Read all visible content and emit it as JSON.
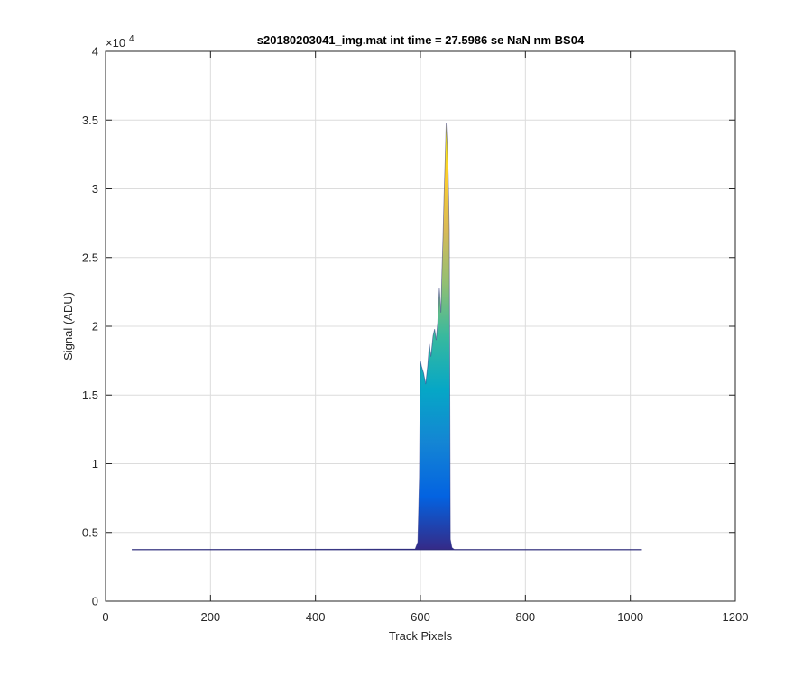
{
  "chart_data": {
    "type": "area",
    "title": "s20180203041_img.mat int time = 27.5986 se  NaN nm BS04",
    "xlabel": "Track Pixels",
    "ylabel": "Signal (ADU)",
    "xlim": [
      0,
      1200
    ],
    "ylim": [
      0,
      40000
    ],
    "y_exponent_label": "×10",
    "y_exponent_power": "4",
    "x_ticks": [
      0,
      200,
      400,
      600,
      800,
      1000,
      1200
    ],
    "x_tick_labels": [
      "0",
      "200",
      "400",
      "600",
      "800",
      "1000",
      "1200"
    ],
    "y_ticks": [
      0,
      5000,
      10000,
      15000,
      20000,
      25000,
      30000,
      35000,
      40000
    ],
    "y_tick_labels": [
      "0",
      "0.5",
      "1",
      "1.5",
      "2",
      "2.5",
      "3",
      "3.5",
      "4"
    ],
    "grid": true,
    "colormap": [
      "#352a87",
      "#0363e1",
      "#1485d4",
      "#06a7c6",
      "#38b99e",
      "#92bf73",
      "#d9ba56",
      "#fcce2e",
      "#f9fb0e"
    ],
    "series": [
      {
        "baseline": 3750,
        "x": [
          50,
          590,
          595,
          598,
          600,
          602,
          606,
          610,
          614,
          617,
          620,
          624,
          627,
          630,
          633,
          636,
          639,
          641,
          643,
          645,
          647,
          649,
          651,
          653,
          655,
          657,
          660,
          665,
          1022
        ],
        "y": [
          3750,
          3800,
          4300,
          9000,
          17500,
          17100,
          16600,
          15800,
          17200,
          18700,
          17800,
          19300,
          19800,
          19000,
          20300,
          22800,
          21000,
          24000,
          26500,
          29500,
          32000,
          34800,
          33300,
          31000,
          27000,
          4500,
          3900,
          3750,
          3750
        ]
      }
    ]
  }
}
